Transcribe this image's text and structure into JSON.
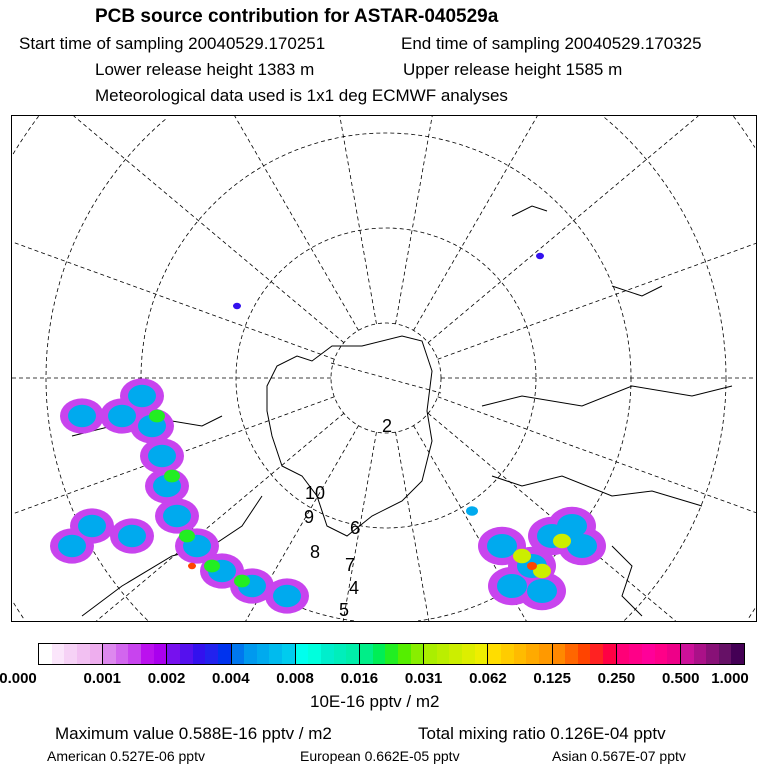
{
  "header": {
    "title": "PCB source contribution for ASTAR-040529a",
    "start_time": "Start time of sampling 20040529.170251",
    "end_time": "End time of sampling 20040529.170325",
    "lower_height": "Lower release height 1383 m",
    "upper_height": "Upper release height 1585 m",
    "met_data": "Meteorological data used is 1x1 deg ECMWF analyses"
  },
  "map": {
    "projection": "north-polar-stereographic",
    "trajectory_labels": [
      "2",
      "4",
      "5",
      "6",
      "7",
      "8",
      "9",
      "10"
    ]
  },
  "colorbar": {
    "ticks": [
      "0.000",
      "0.001",
      "0.002",
      "0.004",
      "0.008",
      "0.016",
      "0.031",
      "0.062",
      "0.125",
      "0.250",
      "0.500",
      "1.000"
    ],
    "unit": "10E-16 pptv / m2",
    "segments": [
      [
        "#ffffff",
        "#fbe6fb",
        "#f6d2f6",
        "#f2c0f2",
        "#eeaeee"
      ],
      [
        "#dd88ee",
        "#d266ee",
        "#c844ee",
        "#bb11ee",
        "#aa00ee"
      ],
      [
        "#7711ee",
        "#5511ee",
        "#3311ee",
        "#2222ee",
        "#0033ee"
      ],
      [
        "#0077ee",
        "#0099ee",
        "#00aaee",
        "#00bbee",
        "#00ccee"
      ],
      [
        "#00ffee",
        "#00ffdd",
        "#00eecc",
        "#00eebb",
        "#00eeaa"
      ],
      [
        "#00ee88",
        "#00ee55",
        "#22ee22",
        "#55ee00",
        "#88ee00"
      ],
      [
        "#aaee00",
        "#bbee00",
        "#ccee00",
        "#ddee00",
        "#eeee00"
      ],
      [
        "#ffdd00",
        "#ffcc00",
        "#ffbb00",
        "#ffaa00",
        "#ff9900"
      ],
      [
        "#ff8800",
        "#ff6600",
        "#ff4400",
        "#ff2222",
        "#ff0044"
      ],
      [
        "#ff0077",
        "#ff0088",
        "#ff0099",
        "#ff0088",
        "#ee0088"
      ],
      [
        "#cc1199",
        "#aa1188",
        "#881177",
        "#661166",
        "#440055"
      ]
    ]
  },
  "footer": {
    "max_value": "Maximum value  0.588E-16 pptv / m2",
    "total_mixing": "Total mixing ratio  0.126E-04 pptv",
    "american": "American  0.527E-06 pptv",
    "european": "European  0.662E-05 pptv",
    "asian": "Asian  0.567E-07 pptv"
  }
}
